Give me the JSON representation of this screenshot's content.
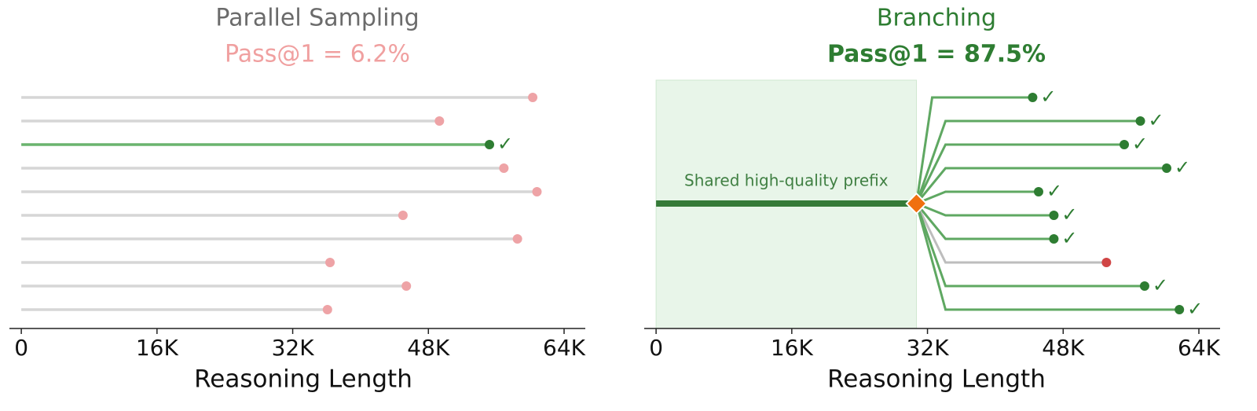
{
  "chart_data": [
    {
      "type": "lollipop",
      "title": "Parallel Sampling",
      "subtitle": "Pass@1 = 6.2%",
      "xlabel": "Reasoning Length",
      "xlim": [
        -1400,
        66500
      ],
      "xticks": [
        0,
        {
          "value": 16000,
          "label": "16K"
        },
        {
          "value": 32000,
          "label": "32K"
        },
        {
          "value": 48000,
          "label": "48K"
        },
        {
          "value": 64000,
          "label": "64K"
        }
      ],
      "values": [
        60300,
        49300,
        55200,
        56900,
        60800,
        45000,
        58500,
        36400,
        45400,
        36100
      ],
      "correct": [
        false,
        false,
        true,
        false,
        false,
        false,
        false,
        false,
        false,
        false
      ],
      "check_label": "✓",
      "correct_color": "#2e7d32",
      "correct_line_color": "#6ab46e",
      "wrong_color": "#eea3a6",
      "wrong_line_color": "#d6d6d6"
    },
    {
      "type": "branching",
      "title": "Branching",
      "subtitle": "Pass@1 = 87.5%",
      "xlabel": "Reasoning Length",
      "xlim": [
        -1400,
        66500
      ],
      "xticks": [
        0,
        {
          "value": 16000,
          "label": "16K"
        },
        {
          "value": 32000,
          "label": "32K"
        },
        {
          "value": 48000,
          "label": "48K"
        },
        {
          "value": 64000,
          "label": "64K"
        }
      ],
      "prefix_label": "Shared high-quality prefix",
      "prefix_end": 30700,
      "values": [
        44400,
        57100,
        55200,
        60200,
        45100,
        46900,
        46900,
        53100,
        57600,
        61700
      ],
      "correct": [
        true,
        true,
        true,
        true,
        true,
        true,
        true,
        false,
        true,
        true
      ],
      "check_label": "✓",
      "correct_color": "#2e7d32",
      "correct_line_color": "#5fa862",
      "wrong_color": "#d04545",
      "wrong_line_color": "#bdbdbd",
      "prefix_color": "#357a38",
      "fork_color": "#f07010",
      "shade_color": "#e8f5e9"
    }
  ]
}
